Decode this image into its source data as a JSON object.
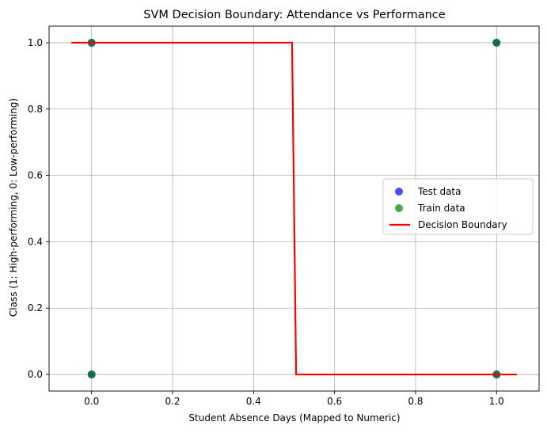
{
  "chart_data": {
    "type": "scatter",
    "title": "SVM Decision Boundary: Attendance vs Performance",
    "xlabel": "Student Absence Days (Mapped to Numeric)",
    "ylabel": "Class (1: High-performing, 0: Low-performing)",
    "xlim": [
      -0.105,
      1.105
    ],
    "ylim": [
      -0.05,
      1.05
    ],
    "xticks": [
      0.0,
      0.2,
      0.4,
      0.6,
      0.8,
      1.0
    ],
    "xtick_labels": [
      "0.0",
      "0.2",
      "0.4",
      "0.6",
      "0.8",
      "1.0"
    ],
    "yticks": [
      0.0,
      0.2,
      0.4,
      0.6,
      0.8,
      1.0
    ],
    "ytick_labels": [
      "0.0",
      "0.2",
      "0.4",
      "0.6",
      "0.8",
      "1.0"
    ],
    "grid": true,
    "legend_position": "center-right",
    "series": [
      {
        "name": "Test data",
        "kind": "scatter",
        "color": "#0000ff",
        "points": [
          [
            0,
            1
          ],
          [
            0,
            0
          ],
          [
            1,
            1
          ],
          [
            1,
            0
          ]
        ]
      },
      {
        "name": "Train data",
        "kind": "scatter",
        "color": "#008000",
        "points": [
          [
            0,
            1
          ],
          [
            0,
            0
          ],
          [
            1,
            1
          ],
          [
            1,
            0
          ]
        ]
      },
      {
        "name": "Decision Boundary",
        "kind": "line",
        "color": "#ff0000",
        "points": [
          [
            -0.05,
            1
          ],
          [
            0.495,
            1
          ],
          [
            0.505,
            0
          ],
          [
            1.05,
            0
          ]
        ]
      }
    ]
  }
}
